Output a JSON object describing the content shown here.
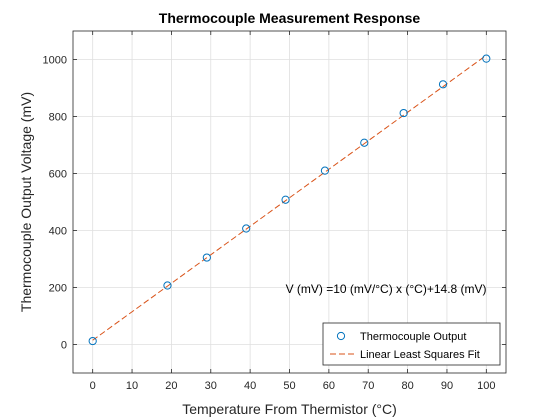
{
  "chart_data": {
    "type": "scatter",
    "title": "Thermocouple Measurement Response",
    "xlabel": "Temperature From Thermistor (°C)",
    "ylabel": "Thermocouple Output Voltage (mV)",
    "xlim": [
      -5,
      105
    ],
    "ylim": [
      -100,
      1100
    ],
    "x_ticks": [
      0,
      10,
      20,
      30,
      40,
      50,
      60,
      70,
      80,
      90,
      100
    ],
    "y_ticks": [
      0,
      200,
      400,
      600,
      800,
      1000
    ],
    "grid": true,
    "legend_position": "bottom-right",
    "series": [
      {
        "name": "Thermocouple Output",
        "kind": "markers",
        "marker": "circle",
        "color": "#0072BD",
        "x": [
          0,
          19,
          29,
          39,
          49,
          59,
          69,
          79,
          89,
          100
        ],
        "y": [
          12,
          207,
          305,
          407,
          508,
          610,
          708,
          812,
          913,
          1003
        ]
      },
      {
        "name": "Linear Least Squares Fit",
        "kind": "dashed-line",
        "color": "#D95319",
        "x": [
          0,
          100
        ],
        "y": [
          14.8,
          1014.8
        ]
      }
    ],
    "annotations": [
      {
        "text": "V (mV) =10 (mV/°C) x (°C)+14.8 (mV)",
        "x": 49,
        "y": 195
      }
    ]
  }
}
